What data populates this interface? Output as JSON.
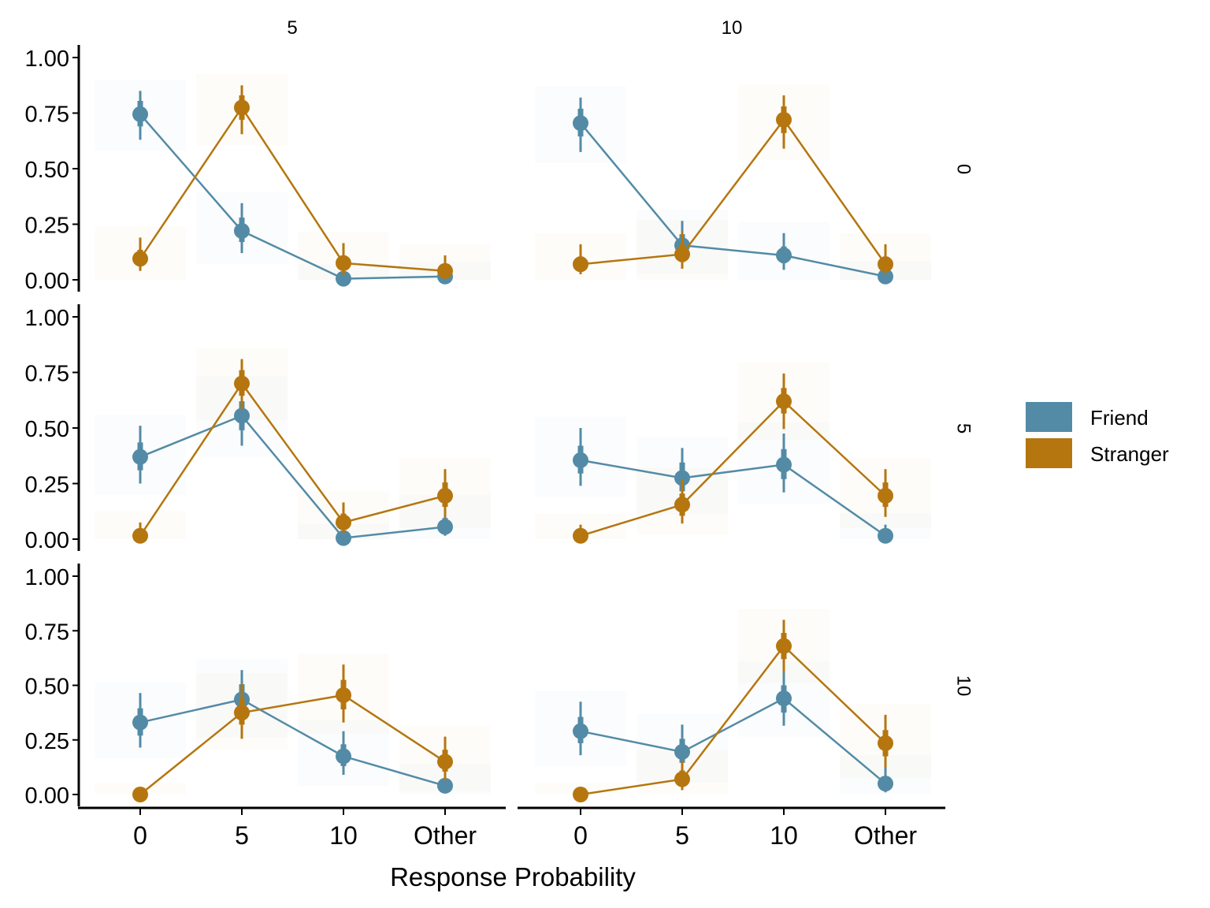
{
  "chart_data": {
    "type": "line",
    "xlabel": "Response Probability",
    "ylabel": "",
    "categories": [
      "0",
      "5",
      "10",
      "Other"
    ],
    "ylim": [
      0,
      1
    ],
    "yticks": [
      "0.00",
      "0.25",
      "0.50",
      "0.75",
      "1.00"
    ],
    "facet_cols": [
      "5",
      "10"
    ],
    "facet_rows": [
      "0",
      "5",
      "10"
    ],
    "colors": {
      "Friend": "#538BA6",
      "Stranger": "#B5760F"
    },
    "legend_position": "right",
    "series": [
      {
        "name": "Friend",
        "facet_row": "0",
        "facet_col": "5",
        "values": [
          0.745,
          0.22,
          0.005,
          0.015
        ],
        "ci95": [
          [
            0.63,
            0.85
          ],
          [
            0.12,
            0.345
          ],
          [
            0.0,
            0.02
          ],
          [
            0.0,
            0.03
          ]
        ],
        "ci66": [
          [
            0.69,
            0.805
          ],
          [
            0.17,
            0.28
          ],
          [
            0.0,
            0.01
          ],
          [
            0.005,
            0.025
          ]
        ]
      },
      {
        "name": "Stranger",
        "facet_row": "0",
        "facet_col": "5",
        "values": [
          0.095,
          0.775,
          0.075,
          0.04
        ],
        "ci95": [
          [
            0.04,
            0.19
          ],
          [
            0.655,
            0.875
          ],
          [
            0.02,
            0.165
          ],
          [
            0.01,
            0.11
          ]
        ],
        "ci66": [
          [
            0.065,
            0.135
          ],
          [
            0.72,
            0.83
          ],
          [
            0.045,
            0.11
          ],
          [
            0.02,
            0.065
          ]
        ]
      },
      {
        "name": "Friend",
        "facet_row": "0",
        "facet_col": "10",
        "values": [
          0.705,
          0.155,
          0.11,
          0.015
        ],
        "ci95": [
          [
            0.575,
            0.82
          ],
          [
            0.075,
            0.265
          ],
          [
            0.045,
            0.21
          ],
          [
            0.0,
            0.035
          ]
        ],
        "ci66": [
          [
            0.645,
            0.77
          ],
          [
            0.11,
            0.205
          ],
          [
            0.075,
            0.15
          ],
          [
            0.005,
            0.025
          ]
        ]
      },
      {
        "name": "Stranger",
        "facet_row": "0",
        "facet_col": "10",
        "values": [
          0.07,
          0.115,
          0.72,
          0.07
        ],
        "ci95": [
          [
            0.025,
            0.16
          ],
          [
            0.05,
            0.22
          ],
          [
            0.59,
            0.83
          ],
          [
            0.025,
            0.16
          ]
        ],
        "ci66": [
          [
            0.045,
            0.105
          ],
          [
            0.08,
            0.16
          ],
          [
            0.66,
            0.78
          ],
          [
            0.045,
            0.105
          ]
        ]
      },
      {
        "name": "Friend",
        "facet_row": "5",
        "facet_col": "5",
        "values": [
          0.37,
          0.555,
          0.005,
          0.055
        ],
        "ci95": [
          [
            0.25,
            0.51
          ],
          [
            0.42,
            0.685
          ],
          [
            0.0,
            0.02
          ],
          [
            0.015,
            0.15
          ]
        ],
        "ci66": [
          [
            0.31,
            0.435
          ],
          [
            0.49,
            0.62
          ],
          [
            0.0,
            0.01
          ],
          [
            0.03,
            0.095
          ]
        ]
      },
      {
        "name": "Stranger",
        "facet_row": "5",
        "facet_col": "5",
        "values": [
          0.015,
          0.7,
          0.075,
          0.195
        ],
        "ci95": [
          [
            0.0,
            0.075
          ],
          [
            0.585,
            0.81
          ],
          [
            0.025,
            0.165
          ],
          [
            0.1,
            0.315
          ]
        ],
        "ci66": [
          [
            0.005,
            0.04
          ],
          [
            0.645,
            0.76
          ],
          [
            0.05,
            0.115
          ],
          [
            0.145,
            0.255
          ]
        ]
      },
      {
        "name": "Friend",
        "facet_row": "5",
        "facet_col": "10",
        "values": [
          0.355,
          0.275,
          0.335,
          0.015
        ],
        "ci95": [
          [
            0.24,
            0.5
          ],
          [
            0.16,
            0.41
          ],
          [
            0.21,
            0.475
          ],
          [
            0.0,
            0.065
          ]
        ],
        "ci66": [
          [
            0.295,
            0.42
          ],
          [
            0.215,
            0.345
          ],
          [
            0.27,
            0.405
          ],
          [
            0.005,
            0.035
          ]
        ]
      },
      {
        "name": "Stranger",
        "facet_row": "5",
        "facet_col": "10",
        "values": [
          0.015,
          0.155,
          0.62,
          0.195
        ],
        "ci95": [
          [
            0.0,
            0.065
          ],
          [
            0.07,
            0.27
          ],
          [
            0.495,
            0.745
          ],
          [
            0.1,
            0.315
          ]
        ],
        "ci66": [
          [
            0.005,
            0.035
          ],
          [
            0.105,
            0.205
          ],
          [
            0.565,
            0.68
          ],
          [
            0.145,
            0.255
          ]
        ]
      },
      {
        "name": "Friend",
        "facet_row": "10",
        "facet_col": "5",
        "values": [
          0.33,
          0.435,
          0.175,
          0.04
        ],
        "ci95": [
          [
            0.215,
            0.465
          ],
          [
            0.31,
            0.57
          ],
          [
            0.09,
            0.29
          ],
          [
            0.01,
            0.09
          ]
        ],
        "ci66": [
          [
            0.27,
            0.395
          ],
          [
            0.375,
            0.505
          ],
          [
            0.13,
            0.23
          ],
          [
            0.02,
            0.06
          ]
        ]
      },
      {
        "name": "Stranger",
        "facet_row": "10",
        "facet_col": "5",
        "values": [
          0.0,
          0.375,
          0.455,
          0.15
        ],
        "ci95": [
          [
            0.0,
            0.0
          ],
          [
            0.255,
            0.505
          ],
          [
            0.33,
            0.595
          ],
          [
            0.065,
            0.265
          ]
        ],
        "ci66": [
          [
            0.0,
            0.0
          ],
          [
            0.32,
            0.44
          ],
          [
            0.39,
            0.525
          ],
          [
            0.105,
            0.205
          ]
        ]
      },
      {
        "name": "Friend",
        "facet_row": "10",
        "facet_col": "10",
        "values": [
          0.29,
          0.195,
          0.44,
          0.05
        ],
        "ci95": [
          [
            0.18,
            0.425
          ],
          [
            0.105,
            0.32
          ],
          [
            0.315,
            0.56
          ],
          [
            0.01,
            0.13
          ]
        ],
        "ci66": [
          [
            0.235,
            0.355
          ],
          [
            0.145,
            0.255
          ],
          [
            0.375,
            0.5
          ],
          [
            0.025,
            0.08
          ]
        ]
      },
      {
        "name": "Stranger",
        "facet_row": "10",
        "facet_col": "10",
        "values": [
          0.0,
          0.07,
          0.68,
          0.235
        ],
        "ci95": [
          [
            0.0,
            0.0
          ],
          [
            0.02,
            0.155
          ],
          [
            0.56,
            0.8
          ],
          [
            0.125,
            0.365
          ]
        ],
        "ci66": [
          [
            0.0,
            0.0
          ],
          [
            0.045,
            0.11
          ],
          [
            0.62,
            0.74
          ],
          [
            0.175,
            0.295
          ]
        ]
      }
    ]
  }
}
